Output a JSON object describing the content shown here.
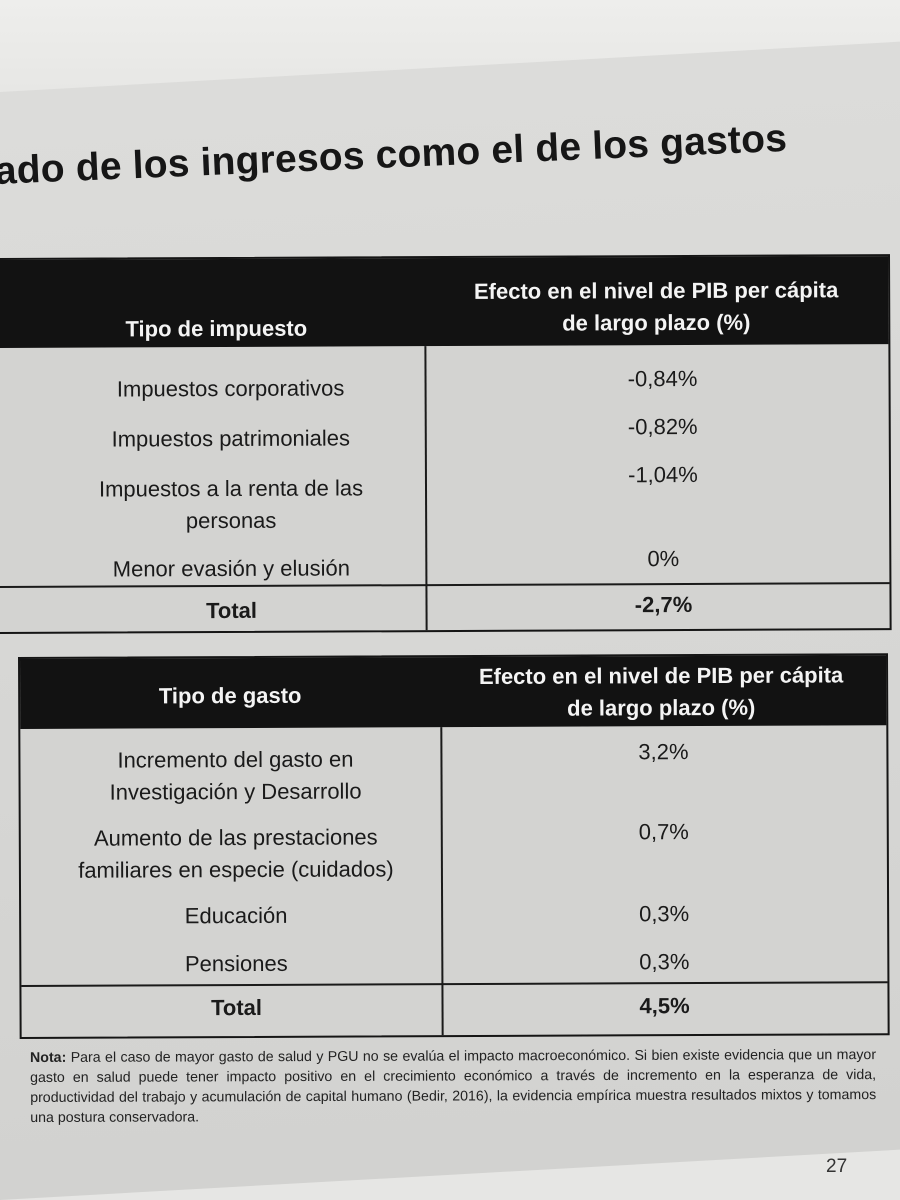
{
  "heading": "ado de los ingresos como el de los gastos",
  "table_taxes": {
    "header_type": "Tipo de impuesto",
    "header_effect_line1": "Efecto en el nivel de PIB per cápita",
    "header_effect_line2": "de largo plazo (%)",
    "rows": [
      {
        "lines": [
          "Impuestos corporativos"
        ],
        "value": "-0,84%"
      },
      {
        "lines": [
          "Impuestos patrimoniales"
        ],
        "value": "-0,82%"
      },
      {
        "lines": [
          "Impuestos a la renta de las",
          "personas"
        ],
        "value": "-1,04%"
      },
      {
        "lines": [
          "Menor evasión y elusión"
        ],
        "value": "0%"
      }
    ],
    "total_label": "Total",
    "total_value": "-2,7%"
  },
  "table_spending": {
    "header_type": "Tipo de gasto",
    "header_effect_line1": "Efecto en el nivel de PIB per cápita",
    "header_effect_line2": "de largo plazo (%)",
    "rows": [
      {
        "lines": [
          "Incremento del gasto en",
          "Investigación y Desarrollo"
        ],
        "value": "3,2%"
      },
      {
        "lines": [
          "Aumento de las prestaciones",
          "familiares en especie (cuidados)"
        ],
        "value": "0,7%"
      },
      {
        "lines": [
          "Educación"
        ],
        "value": "0,3%"
      },
      {
        "lines": [
          "Pensiones"
        ],
        "value": "0,3%"
      }
    ],
    "total_label": "Total",
    "total_value": "4,5%"
  },
  "note": {
    "label": "Nota:",
    "text": "Para el caso de mayor gasto de salud y PGU no se evalúa el impacto macroeconómico. Si bien existe evidencia que un mayor gasto en salud puede tener impacto positivo en el crecimiento económico a través de incremento en la esperanza de vida, productividad del trabajo y acumulación de capital humano (Bedir, 2016), la evidencia empírica muestra resultados mixtos y tomamos una postura conservadora."
  },
  "page_number": "27"
}
